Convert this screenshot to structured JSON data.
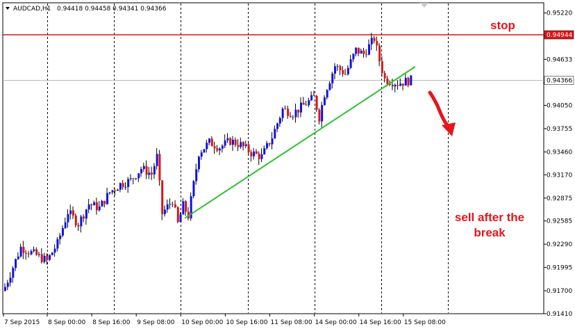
{
  "header": {
    "symbol": "AUDCAD,H1",
    "ohlc": "0.94418 0.94458 0.94341 0.94366"
  },
  "annotations": {
    "stop_label": "stop",
    "sell_line1": "sell after the",
    "sell_line2": "break"
  },
  "colors": {
    "bull": "#1010e6",
    "bear": "#dc1414",
    "wick": "#000000",
    "trendline": "#2cc12c",
    "stop_line": "#dc1414",
    "current_line": "#b4b4b4",
    "arrow": "#e8141c",
    "grid": "#000000"
  },
  "chart_data": {
    "type": "candlestick",
    "title": "AUDCAD,H1",
    "xlabel": "",
    "ylabel": "",
    "ylim": [
      0.9141,
      0.9535
    ],
    "y_ticks": [
      "0.95220",
      "0.94927",
      "0.94633",
      "0.94340",
      "0.94050",
      "0.93755",
      "0.93460",
      "0.93170",
      "0.92875",
      "0.92585",
      "0.92290",
      "0.91995",
      "0.91700",
      "0.91410"
    ],
    "x_tick_labels": [
      "7 Sep 2015",
      "8 Sep 00:00",
      "8 Sep 16:00",
      "9 Sep 08:00",
      "10 Sep 00:00",
      "10 Sep 16:00",
      "11 Sep 08:00",
      "14 Sep 00:00",
      "14 Sep 16:00",
      "15 Sep 08:00"
    ],
    "grid": "vertical dashed",
    "stop_level": {
      "label": "0.94944",
      "value": 0.94944
    },
    "current_price": {
      "label": "0.94366",
      "value": 0.94366
    },
    "trendline": {
      "start": {
        "bar": 69,
        "price": 0.9262
      },
      "end": {
        "bar": 157,
        "price": 0.9454
      }
    },
    "close_path": [
      [
        0,
        0.9175
      ],
      [
        6,
        0.9225
      ],
      [
        12,
        0.9215
      ],
      [
        16,
        0.9208
      ],
      [
        20,
        0.923
      ],
      [
        24,
        0.927
      ],
      [
        28,
        0.9255
      ],
      [
        32,
        0.928
      ],
      [
        36,
        0.9275
      ],
      [
        40,
        0.9295
      ],
      [
        44,
        0.9305
      ],
      [
        48,
        0.931
      ],
      [
        52,
        0.9325
      ],
      [
        56,
        0.9318
      ],
      [
        58,
        0.934
      ],
      [
        60,
        0.9268
      ],
      [
        64,
        0.9285
      ],
      [
        66,
        0.9255
      ],
      [
        68,
        0.9278
      ],
      [
        70,
        0.9265
      ],
      [
        74,
        0.9345
      ],
      [
        78,
        0.9358
      ],
      [
        82,
        0.9352
      ],
      [
        86,
        0.936
      ],
      [
        90,
        0.9355
      ],
      [
        94,
        0.9345
      ],
      [
        98,
        0.934
      ],
      [
        102,
        0.9365
      ],
      [
        106,
        0.94
      ],
      [
        110,
        0.9395
      ],
      [
        114,
        0.9405
      ],
      [
        118,
        0.9415
      ],
      [
        120,
        0.939
      ],
      [
        122,
        0.942
      ],
      [
        126,
        0.9455
      ],
      [
        130,
        0.9445
      ],
      [
        134,
        0.9475
      ],
      [
        137,
        0.947
      ],
      [
        141,
        0.949
      ],
      [
        143,
        0.9462
      ],
      [
        145,
        0.9438
      ],
      [
        150,
        0.9433
      ],
      [
        155,
        0.9437
      ]
    ]
  }
}
